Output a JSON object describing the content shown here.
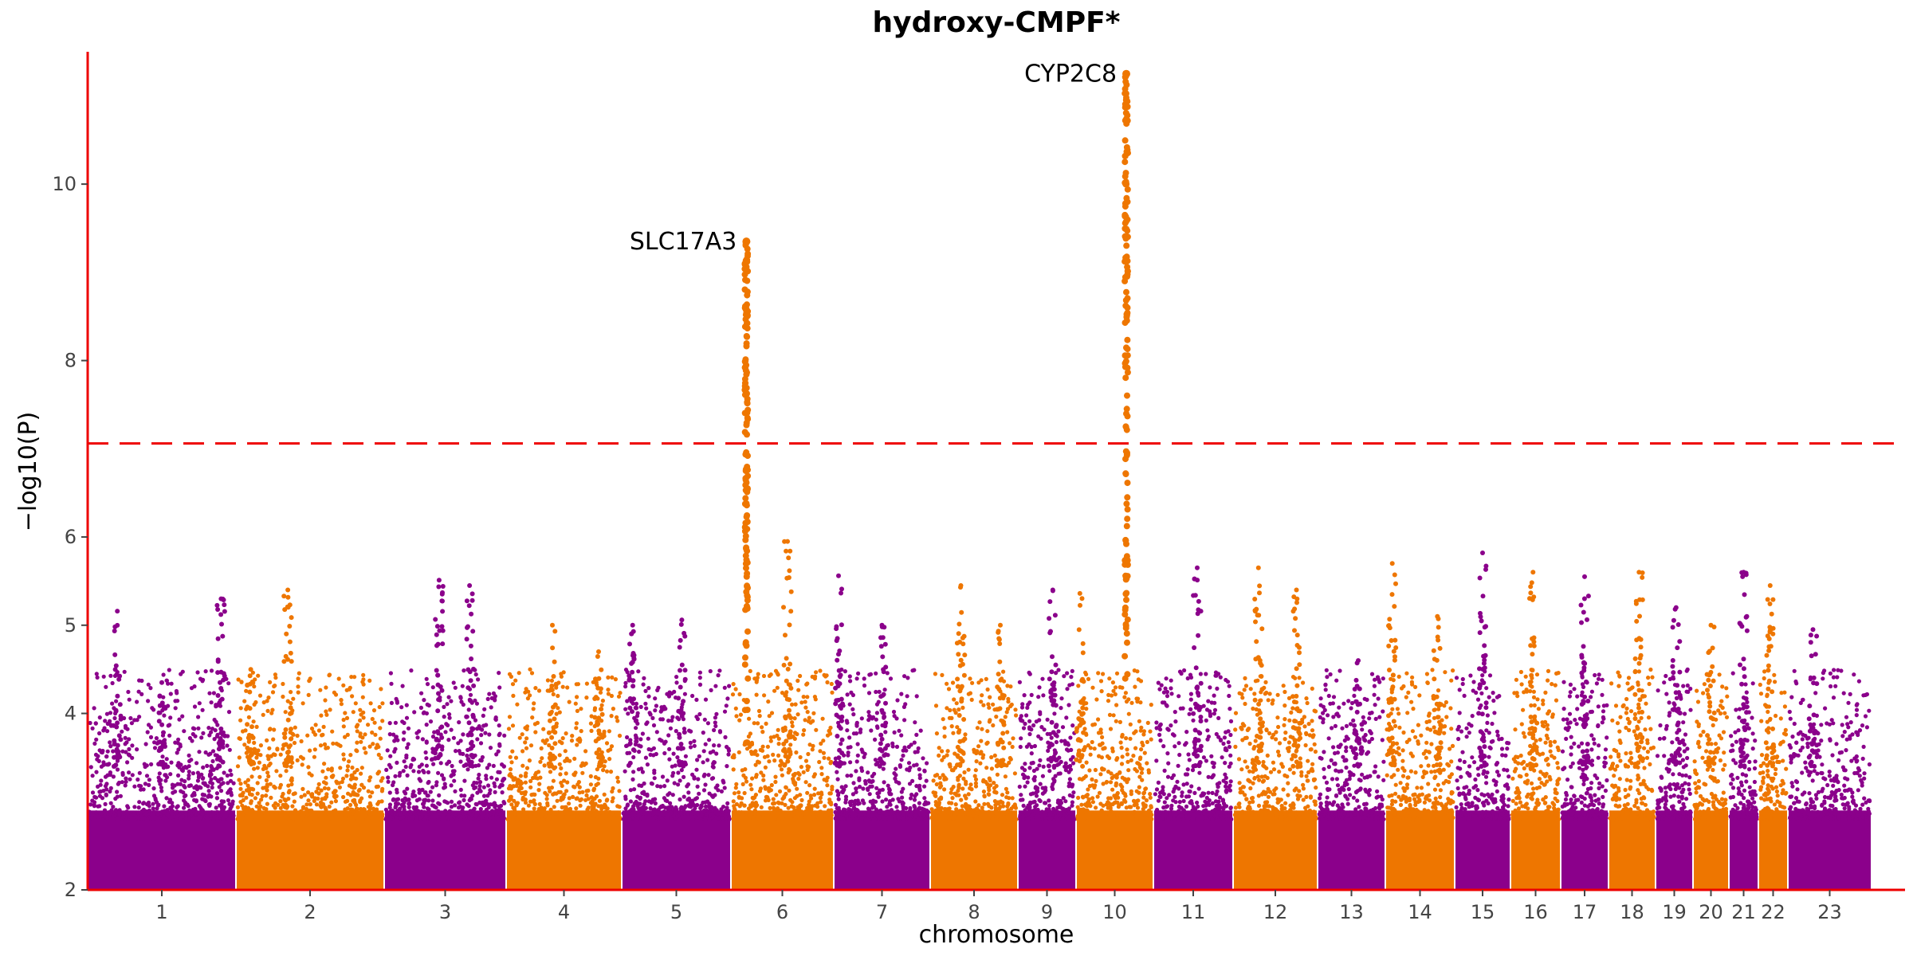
{
  "chart_data": {
    "type": "scatter",
    "subtype": "manhattan",
    "title": "hydroxy-CMPF*",
    "xlabel": "chromosome",
    "ylabel": "−log10(P)",
    "ylim": [
      2,
      11.5
    ],
    "y_ticks": [
      2,
      4,
      5,
      6,
      8,
      10
    ],
    "grid": false,
    "legend": "none",
    "significance_threshold": 7.06,
    "colors": {
      "purple": "#8B008B",
      "orange": "#EE7600",
      "axis": "#EE0000",
      "threshold": "#EE0000"
    },
    "chromosomes": [
      {
        "label": "1",
        "color": "purple",
        "peaks": [
          {
            "pos": 0.2,
            "max": 5.16
          },
          {
            "pos": 0.5,
            "max": 4.35
          },
          {
            "pos": 0.9,
            "max": 5.3
          }
        ]
      },
      {
        "label": "2",
        "color": "orange",
        "peaks": [
          {
            "pos": 0.35,
            "max": 5.4
          },
          {
            "pos": 0.1,
            "max": 4.5
          }
        ]
      },
      {
        "label": "3",
        "color": "purple",
        "peaks": [
          {
            "pos": 0.7,
            "max": 5.45
          },
          {
            "pos": 0.45,
            "max": 5.51
          }
        ]
      },
      {
        "label": "4",
        "color": "orange",
        "peaks": [
          {
            "pos": 0.4,
            "max": 5.0
          },
          {
            "pos": 0.8,
            "max": 4.7
          }
        ]
      },
      {
        "label": "5",
        "color": "purple",
        "peaks": [
          {
            "pos": 0.1,
            "max": 5.0
          },
          {
            "pos": 0.55,
            "max": 5.06
          }
        ]
      },
      {
        "label": "6",
        "color": "orange",
        "peaks": [
          {
            "pos": 0.15,
            "max": 9.35
          },
          {
            "pos": 0.55,
            "max": 5.95
          }
        ]
      },
      {
        "label": "7",
        "color": "purple",
        "peaks": [
          {
            "pos": 0.05,
            "max": 5.56
          },
          {
            "pos": 0.5,
            "max": 5.0
          }
        ]
      },
      {
        "label": "8",
        "color": "orange",
        "peaks": [
          {
            "pos": 0.35,
            "max": 5.45
          },
          {
            "pos": 0.8,
            "max": 5.0
          }
        ]
      },
      {
        "label": "9",
        "color": "purple",
        "peaks": [
          {
            "pos": 0.6,
            "max": 5.4
          }
        ]
      },
      {
        "label": "10",
        "color": "orange",
        "peaks": [
          {
            "pos": 0.05,
            "max": 5.36
          },
          {
            "pos": 0.65,
            "max": 11.25
          }
        ]
      },
      {
        "label": "11",
        "color": "purple",
        "peaks": [
          {
            "pos": 0.55,
            "max": 5.65
          }
        ]
      },
      {
        "label": "12",
        "color": "orange",
        "peaks": [
          {
            "pos": 0.3,
            "max": 5.65
          },
          {
            "pos": 0.75,
            "max": 5.4
          }
        ]
      },
      {
        "label": "13",
        "color": "purple",
        "peaks": [
          {
            "pos": 0.6,
            "max": 4.6
          }
        ]
      },
      {
        "label": "14",
        "color": "orange",
        "peaks": [
          {
            "pos": 0.1,
            "max": 5.7
          },
          {
            "pos": 0.75,
            "max": 5.1
          }
        ]
      },
      {
        "label": "15",
        "color": "purple",
        "peaks": [
          {
            "pos": 0.5,
            "max": 5.82
          }
        ]
      },
      {
        "label": "16",
        "color": "orange",
        "peaks": [
          {
            "pos": 0.45,
            "max": 5.6
          }
        ]
      },
      {
        "label": "17",
        "color": "purple",
        "peaks": [
          {
            "pos": 0.5,
            "max": 5.55
          }
        ]
      },
      {
        "label": "18",
        "color": "orange",
        "peaks": [
          {
            "pos": 0.65,
            "max": 5.6
          }
        ]
      },
      {
        "label": "19",
        "color": "purple",
        "peaks": [
          {
            "pos": 0.55,
            "max": 5.2
          }
        ]
      },
      {
        "label": "20",
        "color": "orange",
        "peaks": [
          {
            "pos": 0.5,
            "max": 5.0
          }
        ]
      },
      {
        "label": "21",
        "color": "purple",
        "peaks": [
          {
            "pos": 0.5,
            "max": 5.6
          }
        ]
      },
      {
        "label": "22",
        "color": "orange",
        "peaks": [
          {
            "pos": 0.4,
            "max": 5.45
          }
        ]
      },
      {
        "label": "23",
        "color": "purple",
        "peaks": [
          {
            "pos": 0.3,
            "max": 4.95
          }
        ]
      }
    ],
    "annotations": [
      {
        "text": "SLC17A3",
        "chromosome": "6",
        "y": 9.35
      },
      {
        "text": "CYP2C8",
        "chromosome": "10",
        "y": 11.25
      }
    ]
  }
}
